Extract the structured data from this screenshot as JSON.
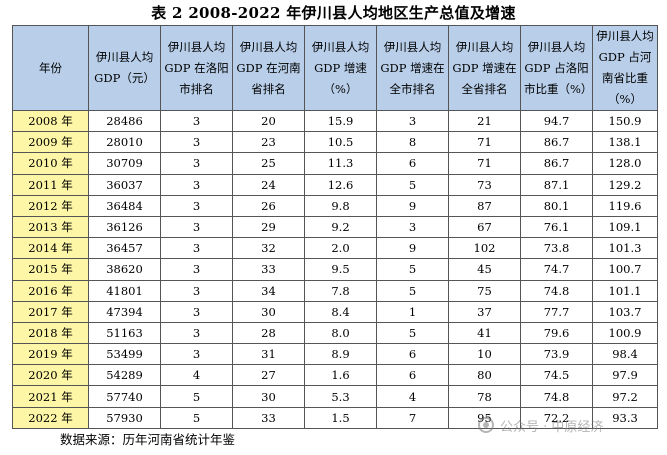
{
  "title": "表 2 2008-2022 年伊川县人均地区生产总值及增速",
  "table": {
    "headers": [
      "年份",
      "伊川县人均 GDP（元）",
      "伊川县人均 GDP 在洛阳市排名",
      "伊川县人均 GDP 在河南省排名",
      "伊川县人均 GDP 增速（%）",
      "伊川县人均 GDP 增速在全市排名",
      "伊川县人均 GDP 增速在全省排名",
      "伊川县人均 GDP 占洛阳市比重（%）",
      "伊川县人均 GDP 占河南省比重（%）"
    ],
    "rows": [
      [
        "2008 年",
        "28486",
        "3",
        "20",
        "15.9",
        "3",
        "21",
        "94.7",
        "150.9"
      ],
      [
        "2009 年",
        "28010",
        "3",
        "23",
        "10.5",
        "8",
        "71",
        "86.7",
        "138.1"
      ],
      [
        "2010 年",
        "30709",
        "3",
        "25",
        "11.3",
        "6",
        "71",
        "86.7",
        "128.0"
      ],
      [
        "2011 年",
        "36037",
        "3",
        "24",
        "12.6",
        "5",
        "73",
        "87.1",
        "129.2"
      ],
      [
        "2012 年",
        "36484",
        "3",
        "26",
        "9.8",
        "9",
        "87",
        "80.1",
        "119.6"
      ],
      [
        "2013 年",
        "36126",
        "3",
        "29",
        "9.2",
        "3",
        "67",
        "76.1",
        "109.1"
      ],
      [
        "2014 年",
        "36457",
        "3",
        "32",
        "2.0",
        "9",
        "102",
        "73.8",
        "101.3"
      ],
      [
        "2015 年",
        "38620",
        "3",
        "33",
        "9.5",
        "5",
        "45",
        "74.7",
        "100.7"
      ],
      [
        "2016 年",
        "41801",
        "3",
        "34",
        "7.8",
        "5",
        "75",
        "74.8",
        "101.1"
      ],
      [
        "2017 年",
        "47394",
        "3",
        "30",
        "8.4",
        "1",
        "37",
        "77.7",
        "103.7"
      ],
      [
        "2018 年",
        "51163",
        "3",
        "28",
        "8.0",
        "5",
        "41",
        "79.6",
        "100.9"
      ],
      [
        "2019 年",
        "53499",
        "3",
        "31",
        "8.9",
        "6",
        "10",
        "73.9",
        "98.4"
      ],
      [
        "2020 年",
        "54289",
        "4",
        "27",
        "1.6",
        "6",
        "80",
        "74.5",
        "97.9"
      ],
      [
        "2021 年",
        "57740",
        "5",
        "30",
        "5.3",
        "4",
        "78",
        "74.8",
        "97.2"
      ],
      [
        "2022 年",
        "57930",
        "5",
        "33",
        "1.5",
        "7",
        "95",
        "72.2",
        "93.3"
      ]
    ]
  },
  "source": "数据来源：历年河南省统计年鉴",
  "watermark": "公众号 · 中原经济",
  "colors": {
    "header_bg": "#b9cfe9",
    "year_bg": "#fdf6a6"
  }
}
